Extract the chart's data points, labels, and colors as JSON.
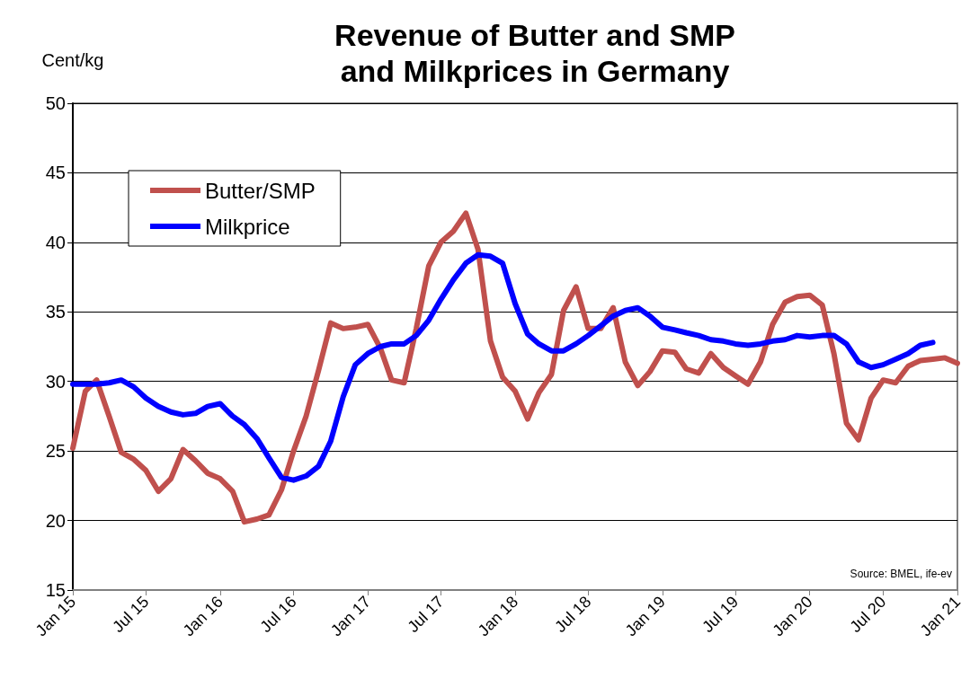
{
  "chart_data": {
    "type": "line",
    "title": "Revenue of Butter and SMP\nand Milkprices in Germany",
    "ylabel": "Cent/kg",
    "x": [
      "2015-01",
      "2015-02",
      "2015-03",
      "2015-04",
      "2015-05",
      "2015-06",
      "2015-07",
      "2015-08",
      "2015-09",
      "2015-10",
      "2015-11",
      "2015-12",
      "2016-01",
      "2016-02",
      "2016-03",
      "2016-04",
      "2016-05",
      "2016-06",
      "2016-07",
      "2016-08",
      "2016-09",
      "2016-10",
      "2016-11",
      "2016-12",
      "2017-01",
      "2017-02",
      "2017-03",
      "2017-04",
      "2017-05",
      "2017-06",
      "2017-07",
      "2017-08",
      "2017-09",
      "2017-10",
      "2017-11",
      "2017-12",
      "2018-01",
      "2018-02",
      "2018-03",
      "2018-04",
      "2018-05",
      "2018-06",
      "2018-07",
      "2018-08",
      "2018-09",
      "2018-10",
      "2018-11",
      "2018-12",
      "2019-01",
      "2019-02",
      "2019-03",
      "2019-04",
      "2019-05",
      "2019-06",
      "2019-07",
      "2019-08",
      "2019-09",
      "2019-10",
      "2019-11",
      "2019-12",
      "2020-01",
      "2020-02",
      "2020-03",
      "2020-04",
      "2020-05",
      "2020-06",
      "2020-07",
      "2020-08",
      "2020-09",
      "2020-10",
      "2020-11",
      "2020-12",
      "2021-01"
    ],
    "series": [
      {
        "name": "Butter/SMP",
        "color": "#c0504d",
        "values": [
          25.2,
          29.3,
          30.1,
          27.5,
          24.9,
          24.4,
          23.6,
          22.1,
          23.0,
          25.1,
          24.3,
          23.4,
          23.0,
          22.1,
          19.9,
          20.1,
          20.4,
          22.2,
          25.0,
          27.5,
          30.8,
          34.2,
          33.8,
          33.9,
          34.1,
          32.4,
          30.1,
          29.9,
          33.8,
          38.3,
          40.0,
          40.8,
          42.1,
          39.5,
          32.9,
          30.3,
          29.3,
          27.3,
          29.2,
          30.5,
          35.1,
          36.8,
          33.8,
          33.8,
          35.3,
          31.4,
          29.7,
          30.7,
          32.2,
          32.1,
          30.9,
          30.6,
          32.0,
          31.0,
          30.4,
          29.8,
          31.4,
          34.1,
          35.7,
          36.1,
          36.2,
          35.5,
          32.0,
          27.0,
          25.8,
          28.8,
          30.1,
          29.9,
          31.1,
          31.5,
          31.6,
          31.7,
          31.3
        ]
      },
      {
        "name": "Milkprice",
        "color": "#0000ff",
        "values": [
          29.8,
          29.8,
          29.8,
          29.9,
          30.1,
          29.6,
          28.8,
          28.2,
          27.8,
          27.6,
          27.7,
          28.2,
          28.4,
          27.5,
          26.9,
          25.9,
          24.5,
          23.1,
          22.9,
          23.2,
          23.9,
          25.7,
          28.9,
          31.2,
          32.0,
          32.5,
          32.7,
          32.7,
          33.3,
          34.4,
          35.9,
          37.3,
          38.5,
          39.1,
          39.0,
          38.5,
          35.6,
          33.4,
          32.7,
          32.2,
          32.2,
          32.7,
          33.3,
          34.0,
          34.7,
          35.1,
          35.3,
          34.7,
          33.9,
          33.7,
          33.5,
          33.3,
          33.0,
          32.9,
          32.7,
          32.6,
          32.7,
          32.9,
          33.0,
          33.3,
          33.2,
          33.3,
          33.3,
          32.7,
          31.4,
          31.0,
          31.2,
          31.6,
          32.0,
          32.6,
          32.8,
          null,
          null
        ]
      }
    ],
    "xlim": [
      "2015-01",
      "2021-01"
    ],
    "xticks": [
      {
        "value": "2015-01",
        "label": "Jan 15"
      },
      {
        "value": "2015-07",
        "label": "Jul 15"
      },
      {
        "value": "2016-01",
        "label": "Jan 16"
      },
      {
        "value": "2016-07",
        "label": "Jul 16"
      },
      {
        "value": "2017-01",
        "label": "Jan 17"
      },
      {
        "value": "2017-07",
        "label": "Jul 17"
      },
      {
        "value": "2018-01",
        "label": "Jan 18"
      },
      {
        "value": "2018-07",
        "label": "Jul 18"
      },
      {
        "value": "2019-01",
        "label": "Jan 19"
      },
      {
        "value": "2019-07",
        "label": "Jul 19"
      },
      {
        "value": "2020-01",
        "label": "Jan 20"
      },
      {
        "value": "2020-07",
        "label": "Jul 20"
      },
      {
        "value": "2021-01",
        "label": "Jan 21"
      }
    ],
    "ylim": [
      15,
      50
    ],
    "yticks": [
      15,
      20,
      25,
      30,
      35,
      40,
      45,
      50
    ],
    "grid": "y",
    "legend": "top left",
    "marker": "none",
    "line_style": "solid",
    "annotations": [
      "Source: BMEL, ife-ev"
    ]
  }
}
